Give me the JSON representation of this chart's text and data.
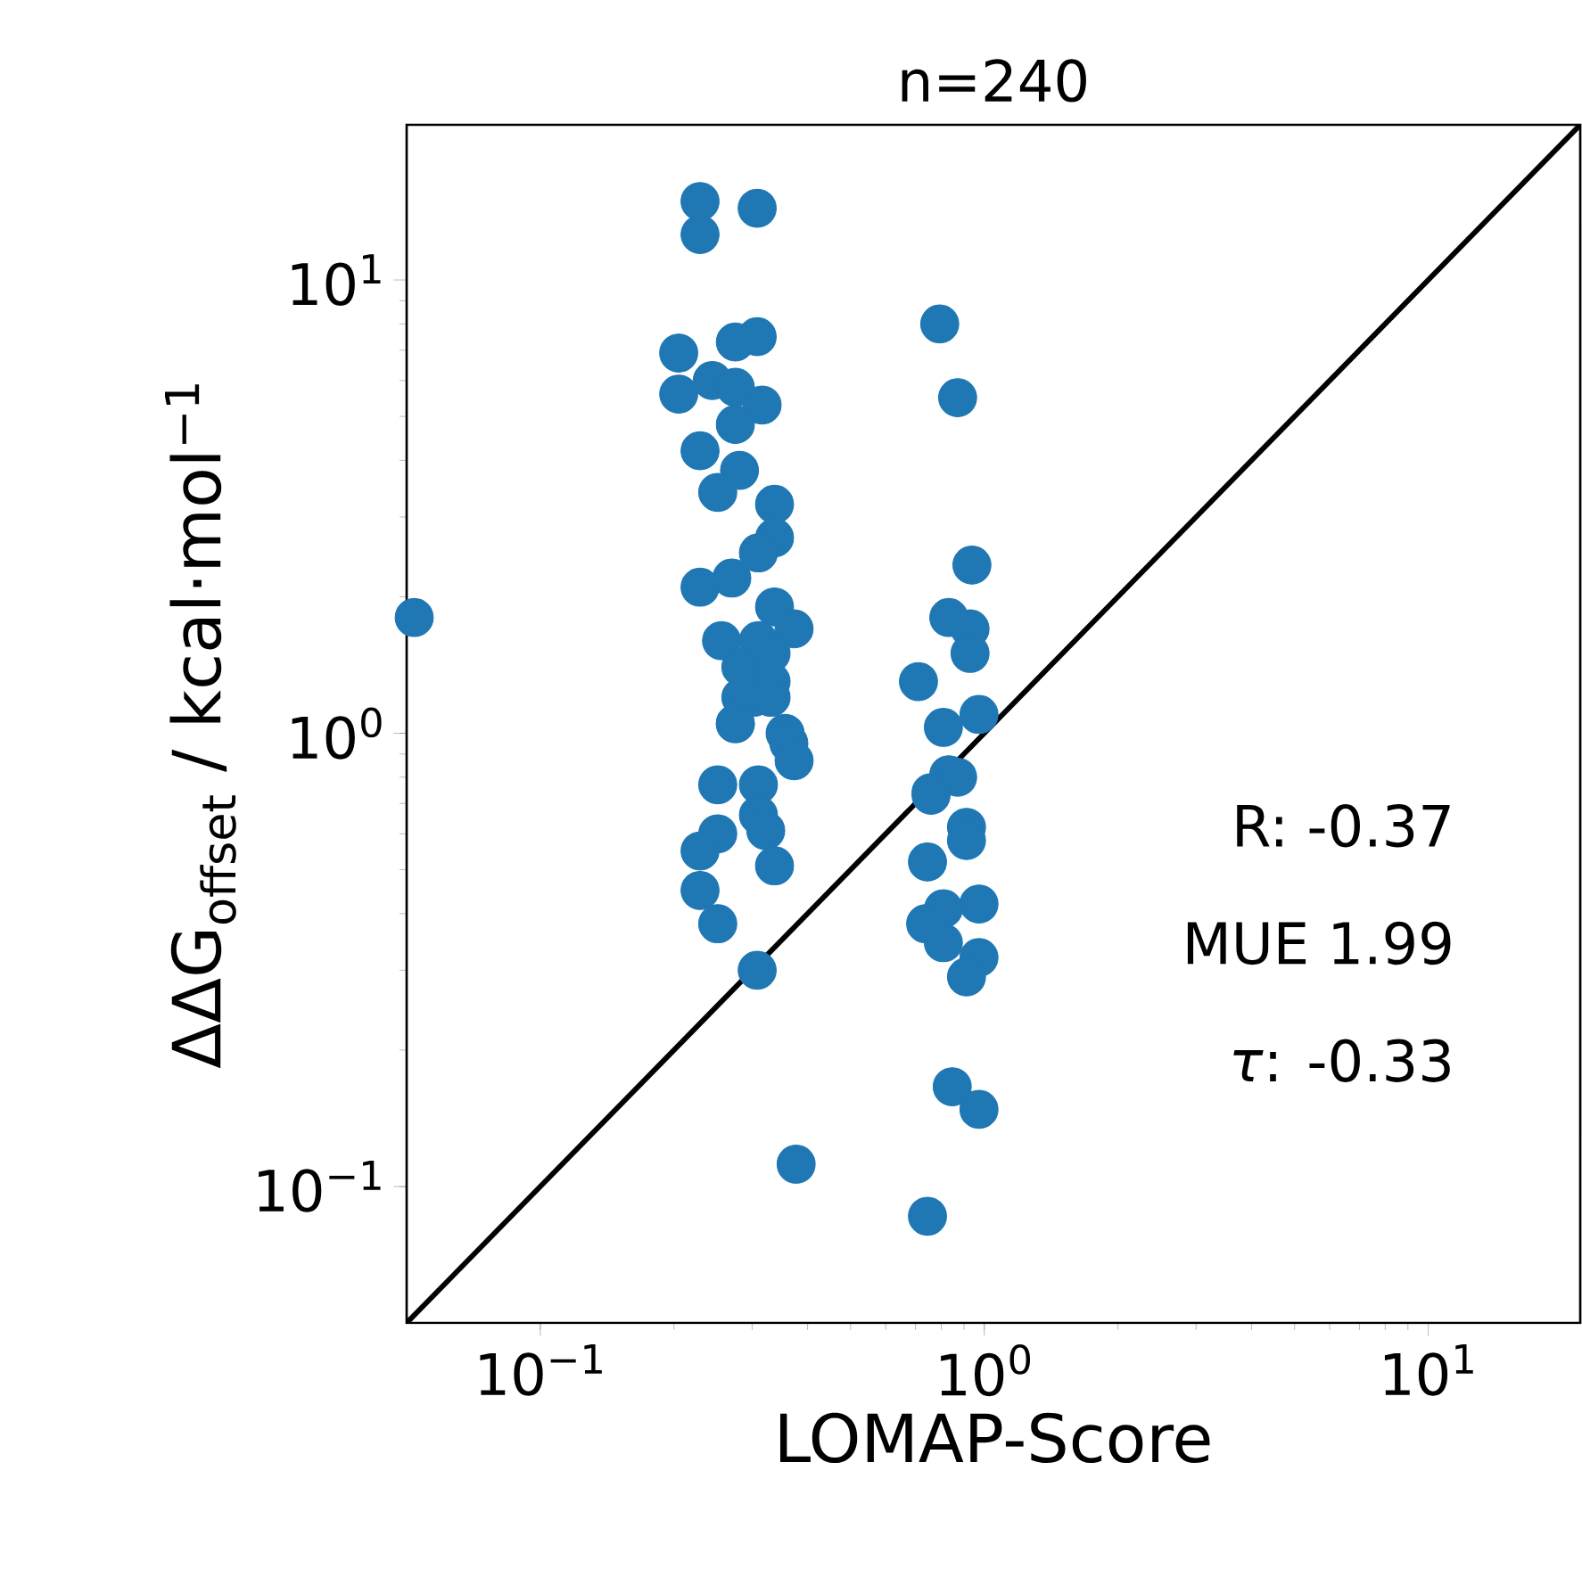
{
  "chart_data": {
    "type": "scatter",
    "title": "n=240",
    "xlabel": "LOMAP-Score",
    "ylabel": "ΔΔG$_{offset}$ / kcal·mol$^{−1}$",
    "log": "xy",
    "xlim": [
      0.05,
      22
    ],
    "ylim": [
      0.05,
      22
    ],
    "xticks": [
      {
        "value": 0.1,
        "label": "10$^{−1}$"
      },
      {
        "value": 1,
        "label": "10$^{0}$"
      },
      {
        "value": 10,
        "label": "10$^{1}$"
      }
    ],
    "yticks": [
      {
        "value": 0.1,
        "label": "10$^{−1}$"
      },
      {
        "value": 1,
        "label": "10$^{0}$"
      },
      {
        "value": 10,
        "label": "10$^{1}$"
      }
    ],
    "annotations": [
      "R: -0.37",
      "MUE 1.99",
      "*τ*: -0.33"
    ],
    "series": [
      {
        "color": "#1f77b4",
        "x": [
          0.229,
          0.229,
          0.308,
          0.308,
          0.275,
          0.205,
          0.205,
          0.244,
          0.275,
          0.316,
          0.275,
          0.229,
          0.281,
          0.251,
          0.337,
          0.337,
          0.31,
          0.229,
          0.27,
          0.337,
          0.373,
          0.256,
          0.31,
          0.331,
          0.283,
          0.331,
          0.283,
          0.275,
          0.356,
          0.052,
          0.302,
          0.331,
          0.275,
          0.363,
          0.373,
          0.251,
          0.31,
          0.31,
          0.322,
          0.251,
          0.229,
          0.337,
          0.229,
          0.251,
          0.308,
          0.377,
          0.794,
          0.871,
          0.938,
          0.832,
          0.929,
          0.929,
          0.711,
          0.973,
          0.809,
          0.832,
          0.759,
          0.871,
          0.759,
          0.912,
          0.912,
          0.745,
          0.973,
          0.809,
          0.738,
          0.809,
          0.973,
          0.912,
          0.847,
          0.973,
          0.745
        ],
        "values": [
          14.9,
          12.6,
          14.4,
          7.5,
          7.3,
          6.9,
          5.6,
          6.0,
          5.8,
          5.3,
          4.8,
          4.2,
          3.8,
          3.4,
          3.2,
          2.7,
          2.5,
          2.1,
          2.2,
          1.9,
          1.7,
          1.6,
          1.6,
          1.5,
          1.4,
          1.3,
          1.2,
          1.05,
          1.0,
          1.8,
          1.2,
          1.2,
          1.05,
          0.95,
          0.87,
          0.77,
          0.77,
          0.66,
          0.61,
          0.6,
          0.55,
          0.51,
          0.45,
          0.38,
          0.3,
          0.112,
          8.0,
          5.5,
          2.35,
          1.8,
          1.7,
          1.5,
          1.3,
          1.1,
          1.03,
          0.81,
          0.74,
          0.8,
          0.73,
          0.62,
          0.58,
          0.52,
          0.42,
          0.41,
          0.38,
          0.345,
          0.32,
          0.29,
          0.166,
          0.148,
          0.086
        ]
      },
      {
        "type": "line",
        "color": "#000000",
        "x": [
          0.05,
          22
        ],
        "values": [
          0.05,
          22
        ]
      }
    ]
  }
}
